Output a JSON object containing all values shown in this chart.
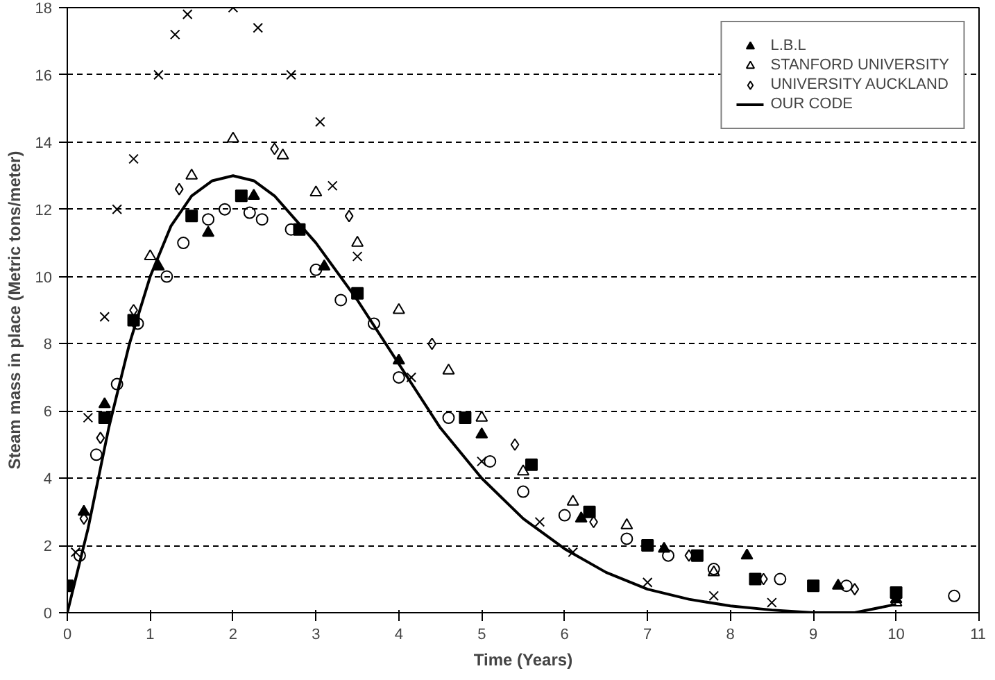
{
  "chart_data": {
    "type": "scatter",
    "xlabel": "Time (Years)",
    "ylabel": "Steam mass in place (Metric tons/meter)",
    "xlim": [
      0,
      11
    ],
    "ylim": [
      0,
      18
    ],
    "xticks": [
      0,
      1,
      2,
      3,
      4,
      5,
      6,
      7,
      8,
      9,
      10,
      11
    ],
    "yticks": [
      0,
      2,
      4,
      6,
      8,
      10,
      12,
      14,
      16,
      18
    ],
    "grid": "y",
    "legend": "top right",
    "series": [
      {
        "color": "#000000",
        "marker": "cross",
        "x": [
          0.1,
          0.25,
          0.45,
          0.6,
          0.8,
          1.1,
          1.3,
          1.45,
          2.0,
          2.3,
          2.7,
          3.05,
          3.2,
          3.5,
          4.15,
          5.0,
          5.7,
          6.1,
          7.0,
          7.8,
          8.5
        ],
        "values": [
          1.8,
          5.8,
          8.8,
          12.0,
          13.5,
          16.0,
          17.2,
          17.8,
          18.0,
          17.4,
          16.0,
          14.6,
          12.7,
          10.6,
          7.0,
          4.5,
          2.7,
          1.8,
          0.9,
          0.5,
          0.3
        ]
      },
      {
        "color": "#000000",
        "marker": "square",
        "x": [
          0,
          0.45,
          0.8,
          1.5,
          2.1,
          2.8,
          3.5,
          4.8,
          5.6,
          6.3,
          7.0,
          7.6,
          8.3,
          9.0,
          10.0
        ],
        "values": [
          0.8,
          5.8,
          8.7,
          11.8,
          12.4,
          11.4,
          9.5,
          5.8,
          4.4,
          3.0,
          2.0,
          1.7,
          1.0,
          0.8,
          0.6
        ]
      },
      {
        "name": "L.B.L",
        "color": "#000000",
        "marker": "triangle",
        "x": [
          0.2,
          0.45,
          1.1,
          1.7,
          2.25,
          3.1,
          4.0,
          5.0,
          6.2,
          7.2,
          8.2,
          9.3,
          10.0
        ],
        "values": [
          3.0,
          6.2,
          10.3,
          11.3,
          12.4,
          10.3,
          7.5,
          5.3,
          2.8,
          1.9,
          1.7,
          0.8,
          0.4
        ]
      },
      {
        "color": "#000000",
        "marker": "circle",
        "x": [
          0.15,
          0.35,
          0.6,
          0.85,
          1.2,
          1.4,
          1.7,
          1.9,
          2.2,
          2.35,
          2.7,
          3.0,
          3.3,
          3.7,
          4.0,
          4.6,
          5.1,
          5.5,
          6.0,
          6.75,
          7.25,
          7.8,
          8.6,
          9.4,
          10.7
        ],
        "values": [
          1.7,
          4.7,
          6.8,
          8.6,
          10.0,
          11.0,
          11.7,
          12.0,
          11.9,
          11.7,
          11.4,
          10.2,
          9.3,
          8.6,
          7.0,
          5.8,
          4.5,
          3.6,
          2.9,
          2.2,
          1.7,
          1.3,
          1.0,
          0.8,
          0.5
        ]
      },
      {
        "name": "STANFORD UNIVERSITY",
        "color": "#000000",
        "marker": "triangle_open",
        "x": [
          1.0,
          1.5,
          2.0,
          2.6,
          3.0,
          3.5,
          4.0,
          4.6,
          5.0,
          5.5,
          6.1,
          6.75,
          7.8,
          10.0
        ],
        "values": [
          10.6,
          13.0,
          14.1,
          13.6,
          12.5,
          11.0,
          9.0,
          7.2,
          5.8,
          4.2,
          3.3,
          2.6,
          1.2,
          0.3
        ]
      },
      {
        "name": "UNIVERSITY AUCKLAND",
        "color": "#000000",
        "marker": "diamond",
        "x": [
          0.2,
          0.4,
          0.8,
          1.35,
          2.5,
          3.4,
          4.4,
          5.4,
          6.35,
          7.5,
          8.4,
          9.5
        ],
        "values": [
          2.8,
          5.2,
          9.0,
          12.6,
          13.8,
          11.8,
          8.0,
          5.0,
          2.7,
          1.7,
          1.0,
          0.7
        ]
      },
      {
        "name": "OUR CODE",
        "type": "line",
        "color": "#000000",
        "x": [
          0,
          0.25,
          0.5,
          0.75,
          1,
          1.25,
          1.5,
          1.75,
          2,
          2.25,
          2.5,
          3,
          3.5,
          4,
          4.5,
          5,
          5.5,
          6,
          6.5,
          7,
          7.5,
          8,
          8.5,
          9,
          9.5,
          10
        ],
        "values": [
          0,
          2.5,
          5.5,
          8,
          10,
          11.5,
          12.4,
          12.85,
          13.0,
          12.85,
          12.4,
          11.0,
          9.3,
          7.4,
          5.5,
          4.0,
          2.8,
          1.9,
          1.2,
          0.7,
          0.4,
          0.2,
          0.08,
          0.0,
          0.0,
          0.25
        ]
      }
    ]
  }
}
